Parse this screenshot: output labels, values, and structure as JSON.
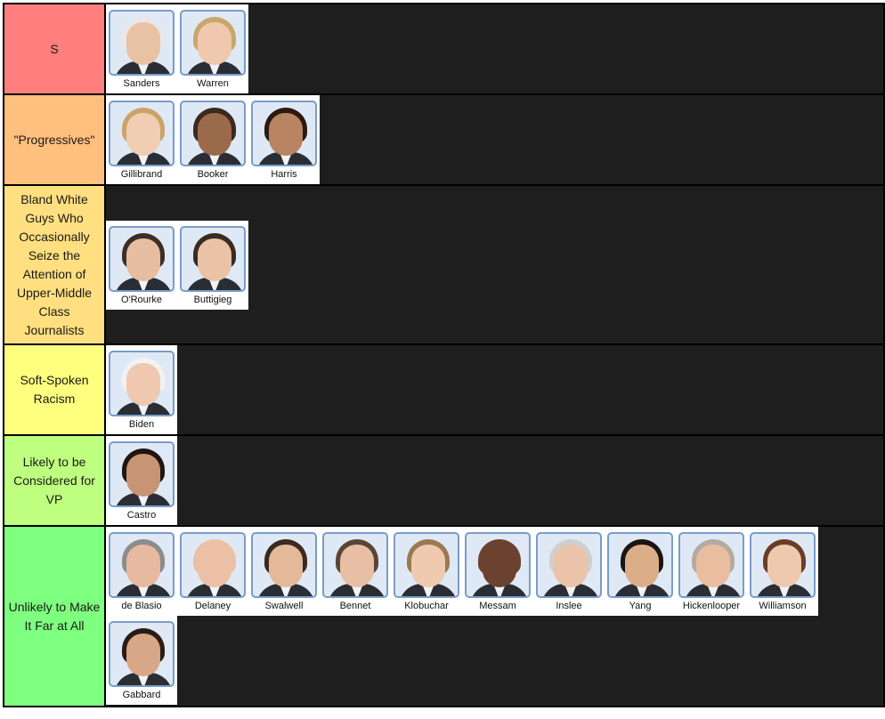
{
  "tiers": [
    {
      "label": "S",
      "color": "#ff7f7f",
      "items": [
        {
          "name": "Sanders",
          "skin": "#e9c2a6",
          "hair": "#e8e8e8"
        },
        {
          "name": "Warren",
          "skin": "#efc8ae",
          "hair": "#c9a66b"
        }
      ]
    },
    {
      "label": "\"Progressives\"",
      "color": "#ffbf7f",
      "items": [
        {
          "name": "Gillibrand",
          "skin": "#f0cdb3",
          "hair": "#c8a46a"
        },
        {
          "name": "Booker",
          "skin": "#9b6a4a",
          "hair": "#3a2a20"
        },
        {
          "name": "Harris",
          "skin": "#b98461",
          "hair": "#2a1a12"
        }
      ]
    },
    {
      "label": "Bland White Guys Who Occasionally Seize the Attention of Upper-Middle Class Journalists",
      "color": "#ffdf7f",
      "items": [
        {
          "name": "O'Rourke",
          "skin": "#e6bda0",
          "hair": "#3b2e28"
        },
        {
          "name": "Buttigieg",
          "skin": "#eac3a6",
          "hair": "#3a2b22"
        }
      ]
    },
    {
      "label": "Soft-Spoken Racism",
      "color": "#ffff7f",
      "items": [
        {
          "name": "Biden",
          "skin": "#eec8b0",
          "hair": "#f2f2f2"
        }
      ]
    },
    {
      "label": "Likely to be Considered for VP",
      "color": "#bfff7f",
      "items": [
        {
          "name": "Castro",
          "skin": "#c99473",
          "hair": "#1e1612"
        }
      ]
    },
    {
      "label": "Unlikely to Make It Far at All",
      "color": "#7fff7f",
      "items": [
        {
          "name": "de Blasio",
          "skin": "#e7b9a0",
          "hair": "#8c8c8c"
        },
        {
          "name": "Delaney",
          "skin": "#ecc0a4",
          "hair": "#ecc0a4"
        },
        {
          "name": "Swalwell",
          "skin": "#e4b99a",
          "hair": "#3a2a1f"
        },
        {
          "name": "Bennet",
          "skin": "#e8bfa4",
          "hair": "#5a4638"
        },
        {
          "name": "Klobuchar",
          "skin": "#efcab0",
          "hair": "#9a7a52"
        },
        {
          "name": "Messam",
          "skin": "#6b4230",
          "hair": "#6b4230"
        },
        {
          "name": "Inslee",
          "skin": "#ebc3a8",
          "hair": "#cfcfcf"
        },
        {
          "name": "Yang",
          "skin": "#dcae88",
          "hair": "#1a1512"
        },
        {
          "name": "Hickenlooper",
          "skin": "#e8bda0",
          "hair": "#b5aaa0"
        },
        {
          "name": "Williamson",
          "skin": "#efc9ad",
          "hair": "#6a3e26"
        },
        {
          "name": "Gabbard",
          "skin": "#d8a787",
          "hair": "#2a1c15"
        }
      ]
    }
  ]
}
